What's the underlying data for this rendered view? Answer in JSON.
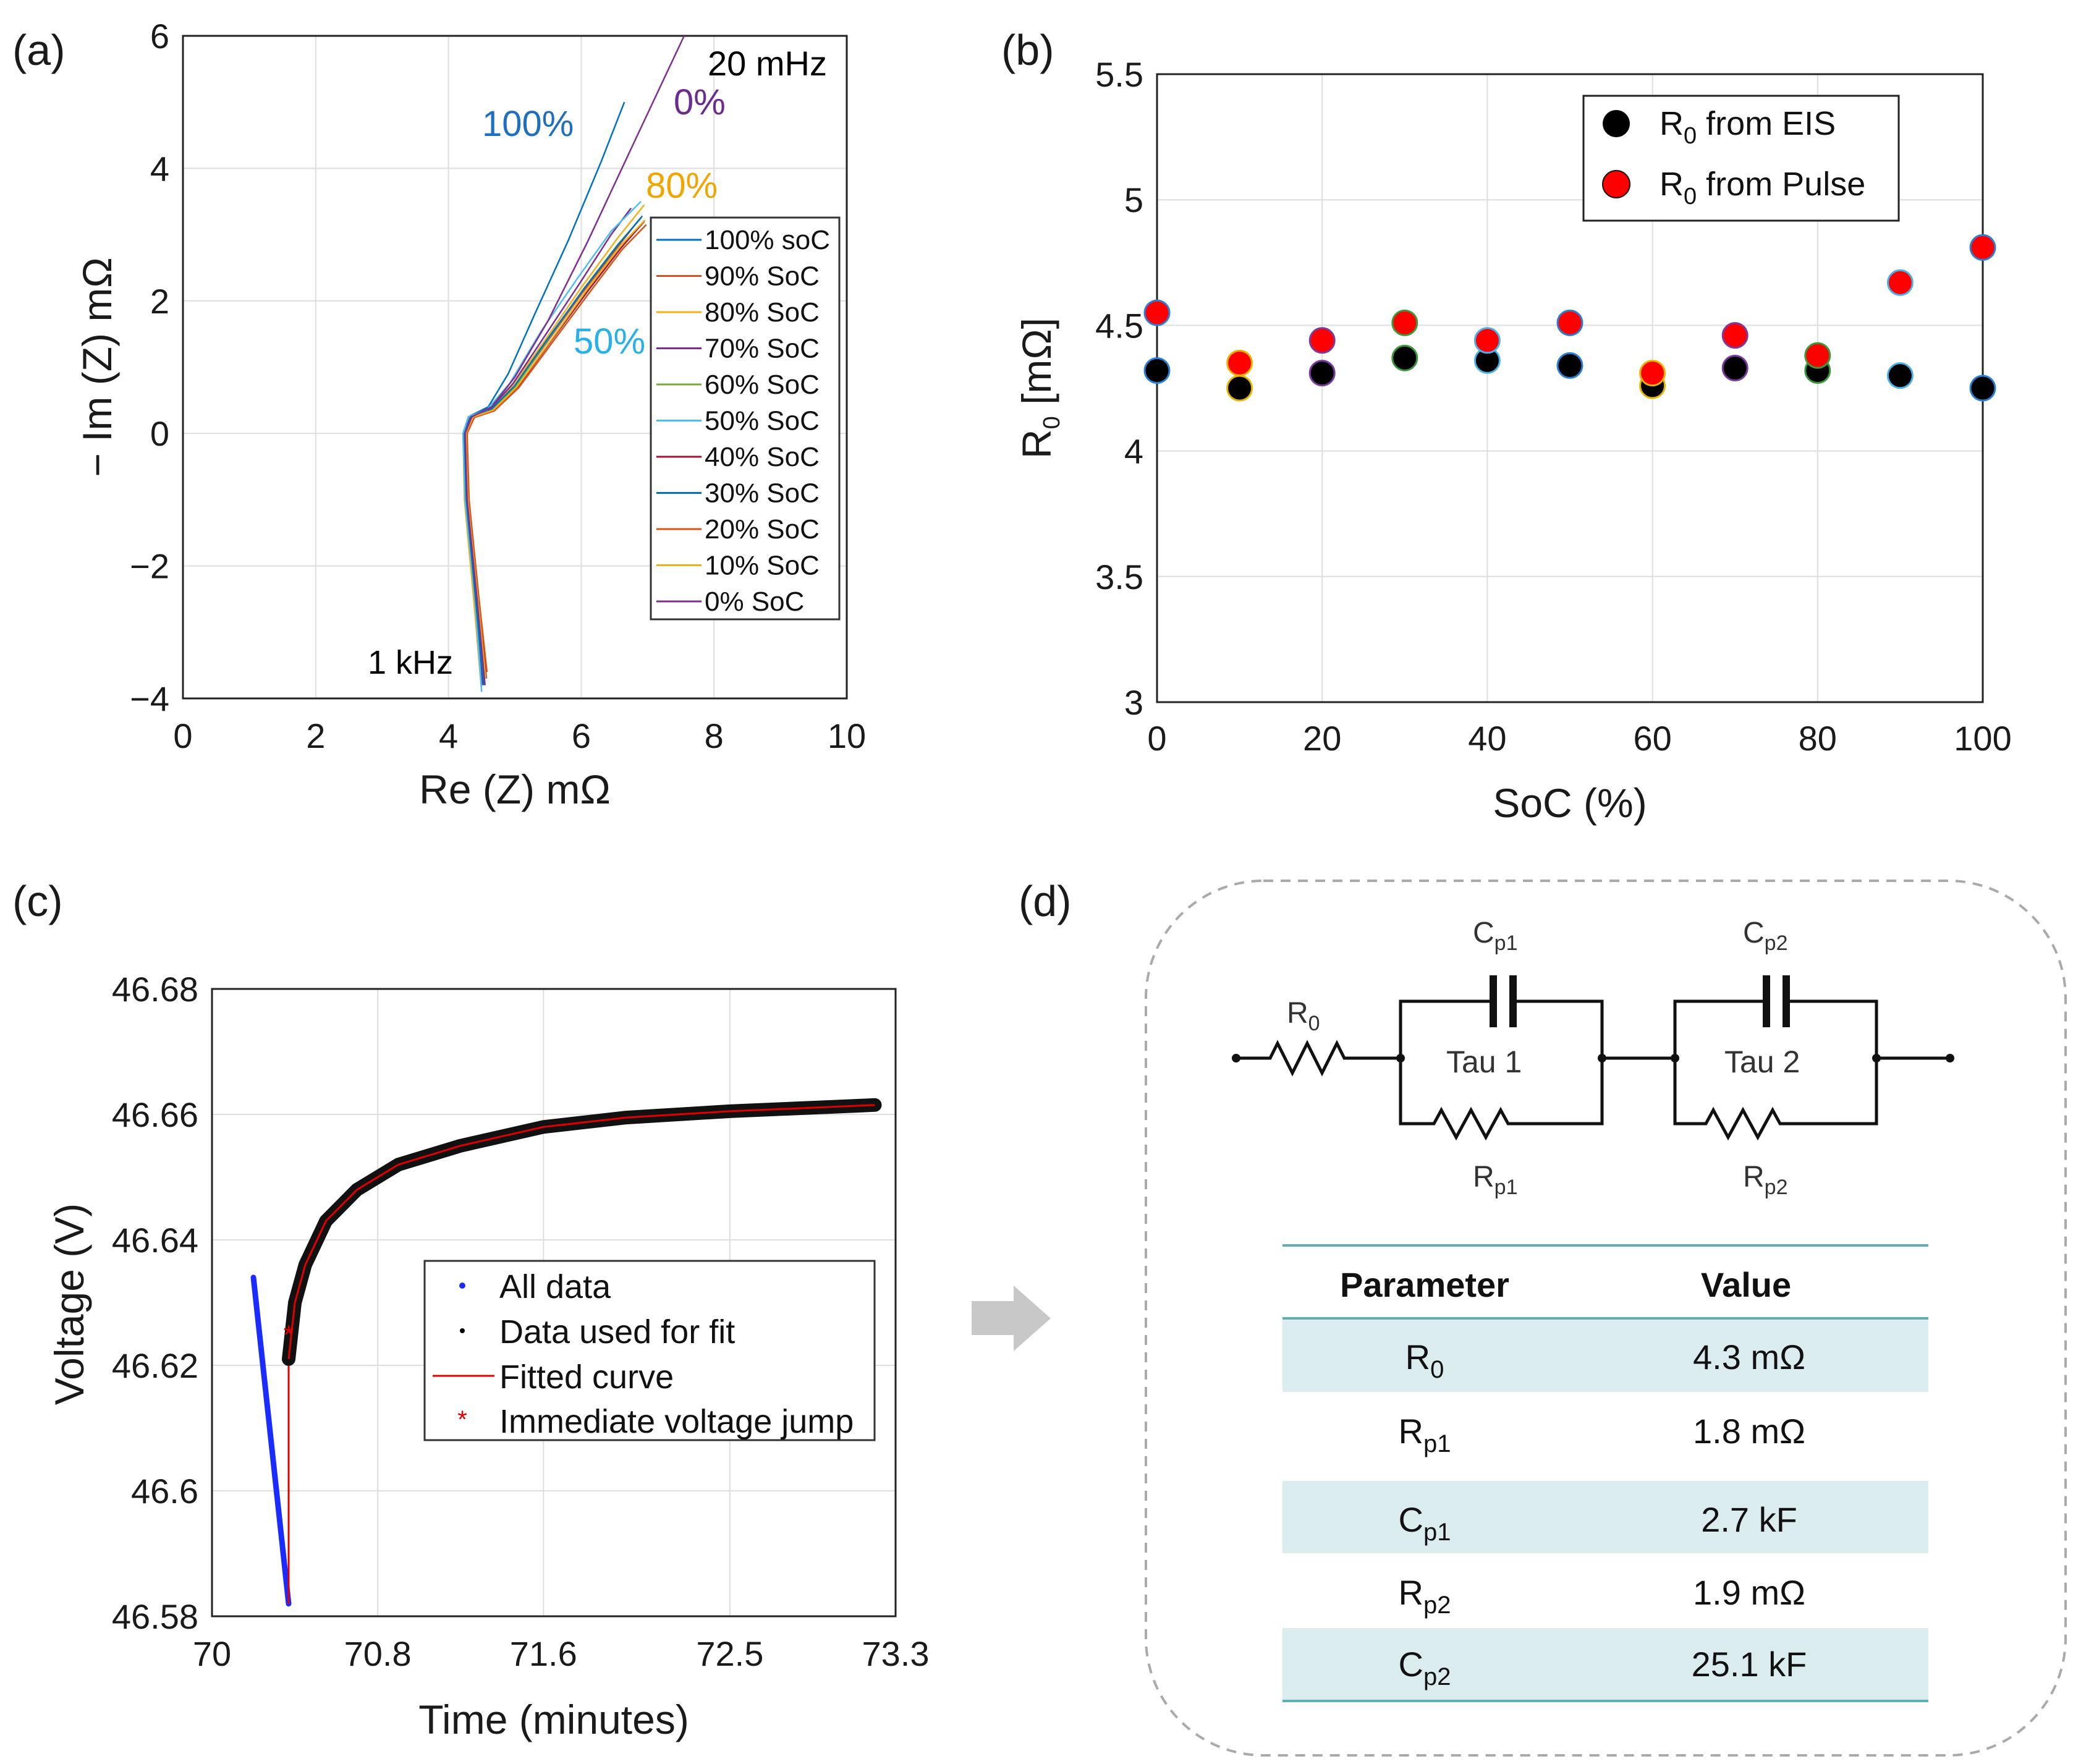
{
  "chart_data": [
    {
      "id": "a",
      "type": "line",
      "panel_label": "(a)",
      "xlabel": "Re (Z) mΩ",
      "ylabel": "− Im (Z) mΩ",
      "xlim": [
        0,
        10
      ],
      "ylim": [
        -4,
        6
      ],
      "xticks": [
        "0",
        "2",
        "4",
        "6",
        "8",
        "10"
      ],
      "yticks": [
        "−4",
        "−2",
        "0",
        "2",
        "4",
        "6"
      ],
      "grid": true,
      "legend_position": "right",
      "annotations": [
        {
          "text": "20 mHz",
          "color": "#111111"
        },
        {
          "text": "100%",
          "color": "#1f6fbf"
        },
        {
          "text": "0%",
          "color": "#6a2c8f"
        },
        {
          "text": "80%",
          "color": "#f0a500"
        },
        {
          "text": "50%",
          "color": "#2ab0e8"
        },
        {
          "text": "1 kHz",
          "color": "#111111"
        }
      ],
      "series": [
        {
          "name": "100% soC",
          "color": "#0072BD",
          "x": [
            4.5,
            4.4,
            4.25,
            4.22,
            4.3,
            4.6,
            4.9,
            5.3,
            5.8,
            6.3,
            6.65
          ],
          "y": [
            -3.8,
            -2.5,
            -1.0,
            0.0,
            0.25,
            0.4,
            0.9,
            1.8,
            2.9,
            4.1,
            5.0
          ]
        },
        {
          "name": "90% SoC",
          "color": "#D95319",
          "x": [
            4.55,
            4.42,
            4.28,
            4.25,
            4.35,
            4.65,
            5.0,
            5.5,
            6.0,
            6.5,
            6.85
          ],
          "y": [
            -3.7,
            -2.5,
            -1.0,
            0.0,
            0.25,
            0.35,
            0.7,
            1.4,
            2.1,
            2.75,
            3.2
          ]
        },
        {
          "name": "80% SoC",
          "color": "#EDB120",
          "x": [
            4.5,
            4.38,
            4.24,
            4.22,
            4.32,
            4.6,
            4.95,
            5.45,
            6.0,
            6.55,
            6.95
          ],
          "y": [
            -3.9,
            -2.5,
            -1.0,
            0.0,
            0.25,
            0.35,
            0.7,
            1.4,
            2.2,
            2.95,
            3.45
          ]
        },
        {
          "name": "70% SoC",
          "color": "#7E2F8E",
          "x": [
            4.52,
            4.4,
            4.26,
            4.23,
            4.33,
            4.62,
            4.97,
            5.47,
            6.0,
            6.45,
            6.75
          ],
          "y": [
            -3.8,
            -2.5,
            -1.0,
            0.0,
            0.25,
            0.36,
            0.75,
            1.5,
            2.3,
            3.0,
            3.4
          ]
        },
        {
          "name": "60% SoC",
          "color": "#77AC30",
          "x": [
            4.55,
            4.43,
            4.28,
            4.25,
            4.36,
            4.66,
            5.02,
            5.52,
            6.05,
            6.55,
            6.9
          ],
          "y": [
            -3.7,
            -2.5,
            -1.0,
            0.0,
            0.25,
            0.35,
            0.72,
            1.45,
            2.2,
            2.85,
            3.25
          ]
        },
        {
          "name": "50% SoC",
          "color": "#4DBEEE",
          "x": [
            4.5,
            4.4,
            4.25,
            4.22,
            4.3,
            4.58,
            4.92,
            5.4,
            5.95,
            6.45,
            6.9
          ],
          "y": [
            -3.9,
            -2.5,
            -1.0,
            0.0,
            0.25,
            0.36,
            0.75,
            1.55,
            2.35,
            3.05,
            3.5
          ]
        },
        {
          "name": "40% SoC",
          "color": "#A2142F",
          "x": [
            4.57,
            4.45,
            4.3,
            4.27,
            4.38,
            4.68,
            5.04,
            5.55,
            6.1,
            6.6,
            6.95
          ],
          "y": [
            -3.7,
            -2.5,
            -1.0,
            0.0,
            0.24,
            0.34,
            0.7,
            1.4,
            2.15,
            2.8,
            3.2
          ]
        },
        {
          "name": "30% SoC",
          "color": "#0072BD",
          "x": [
            4.53,
            4.41,
            4.27,
            4.24,
            4.34,
            4.63,
            4.99,
            5.49,
            6.04,
            6.56,
            6.92
          ],
          "y": [
            -3.8,
            -2.5,
            -1.0,
            0.0,
            0.25,
            0.35,
            0.71,
            1.42,
            2.18,
            2.85,
            3.28
          ]
        },
        {
          "name": "20% SoC",
          "color": "#D95319",
          "x": [
            4.58,
            4.46,
            4.31,
            4.28,
            4.39,
            4.69,
            5.06,
            5.57,
            6.12,
            6.62,
            6.98
          ],
          "y": [
            -3.6,
            -2.5,
            -1.0,
            0.0,
            0.24,
            0.34,
            0.69,
            1.38,
            2.12,
            2.78,
            3.15
          ]
        },
        {
          "name": "10% SoC",
          "color": "#EDB120",
          "x": [
            4.56,
            4.44,
            4.29,
            4.26,
            4.37,
            4.67,
            5.03,
            5.54,
            6.08,
            6.58,
            6.96
          ],
          "y": [
            -3.7,
            -2.5,
            -1.0,
            0.0,
            0.25,
            0.35,
            0.7,
            1.4,
            2.16,
            2.82,
            3.22
          ]
        },
        {
          "name": "0% SoC",
          "color": "#7E2F8E",
          "x": [
            4.55,
            4.43,
            4.28,
            4.25,
            4.35,
            4.65,
            5.0,
            5.5,
            6.1,
            6.8,
            7.55
          ],
          "y": [
            -3.8,
            -2.5,
            -1.0,
            0.0,
            0.25,
            0.4,
            0.85,
            1.7,
            2.9,
            4.4,
            6.0
          ]
        }
      ]
    },
    {
      "id": "b",
      "type": "scatter",
      "panel_label": "(b)",
      "xlabel": "SoC (%)",
      "ylabel_main": "R",
      "ylabel_sub": "0",
      "ylabel_unit": " [mΩ]",
      "xlim": [
        0,
        100
      ],
      "ylim": [
        3,
        5.5
      ],
      "xticks": [
        "0",
        "20",
        "40",
        "60",
        "80",
        "100"
      ],
      "yticks": [
        "3",
        "3.5",
        "4",
        "4.5",
        "5",
        "5.5"
      ],
      "grid": true,
      "legend_position": "top-right",
      "x": [
        0,
        10,
        20,
        30,
        40,
        50,
        60,
        70,
        80,
        90,
        100
      ],
      "series": [
        {
          "name_main": "R",
          "name_sub": "0",
          "name_rest": " from EIS",
          "color": "#000000",
          "values": [
            4.32,
            4.25,
            4.31,
            4.37,
            4.36,
            4.34,
            4.26,
            4.33,
            4.32,
            4.3,
            4.25
          ]
        },
        {
          "name_main": "R",
          "name_sub": "0",
          "name_rest": " from Pulse",
          "color": "#ff0000",
          "values": [
            4.55,
            4.35,
            4.44,
            4.51,
            4.44,
            4.51,
            4.31,
            4.46,
            4.38,
            4.67,
            4.81
          ]
        }
      ]
    },
    {
      "id": "c",
      "type": "scatter",
      "panel_label": "(c)",
      "xlabel": "Time (minutes)",
      "ylabel": "Voltage (V)",
      "xlim": [
        70,
        73.3
      ],
      "ylim": [
        46.58,
        46.68
      ],
      "xticks": [
        "70",
        "70.8",
        "71.6",
        "72.5",
        "73.3"
      ],
      "yticks": [
        "46.58",
        "46.6",
        "46.62",
        "46.64",
        "46.66",
        "46.68"
      ],
      "grid": true,
      "legend_position": "lower-right",
      "legend": [
        "All data",
        "Data used for fit",
        "Fitted curve",
        "Immediate voltage jump"
      ],
      "all_data": {
        "t_start": 70.2,
        "t_end": 70.37,
        "v_start": 46.634,
        "v_end": 46.582
      },
      "jump": {
        "t": 70.37,
        "v": 46.625
      },
      "fit": {
        "t_start": 70.37,
        "t_end": 73.2,
        "v_end": 46.661
      },
      "fit_points": [
        [
          70.37,
          46.621
        ],
        [
          70.4,
          46.63
        ],
        [
          70.45,
          46.636
        ],
        [
          70.55,
          46.643
        ],
        [
          70.7,
          46.648
        ],
        [
          70.9,
          46.652
        ],
        [
          71.2,
          46.655
        ],
        [
          71.6,
          46.658
        ],
        [
          72.0,
          46.6595
        ],
        [
          72.5,
          46.6605
        ],
        [
          73.2,
          46.6615
        ]
      ]
    }
  ],
  "circuit": {
    "panel_label": "(d)",
    "labels": [
      {
        "key": "R0",
        "main": "R",
        "sub": "0"
      },
      {
        "key": "Cp1",
        "main": "C",
        "sub": "p1"
      },
      {
        "key": "Rp1",
        "main": "R",
        "sub": "p1"
      },
      {
        "key": "Cp2",
        "main": "C",
        "sub": "p2"
      },
      {
        "key": "Rp2",
        "main": "R",
        "sub": "p2"
      }
    ],
    "tau1": "Tau 1",
    "tau2": "Tau 2"
  },
  "table": {
    "header": {
      "param": "Parameter",
      "value": "Value"
    },
    "rows": [
      {
        "main": "R",
        "sub": "0",
        "value": "4.3 mΩ"
      },
      {
        "main": "R",
        "sub": "p1",
        "value": "1.8 mΩ"
      },
      {
        "main": "C",
        "sub": "p1",
        "value": "2.7 kF"
      },
      {
        "main": "R",
        "sub": "p2",
        "value": "1.9 mΩ"
      },
      {
        "main": "C",
        "sub": "p2",
        "value": "25.1 kF"
      }
    ]
  },
  "colors": {
    "table_line": "#5bb0b8",
    "table_band": "#dbecef",
    "arrow": "#c8c8c8",
    "dash_box": "#aaaaaa"
  }
}
